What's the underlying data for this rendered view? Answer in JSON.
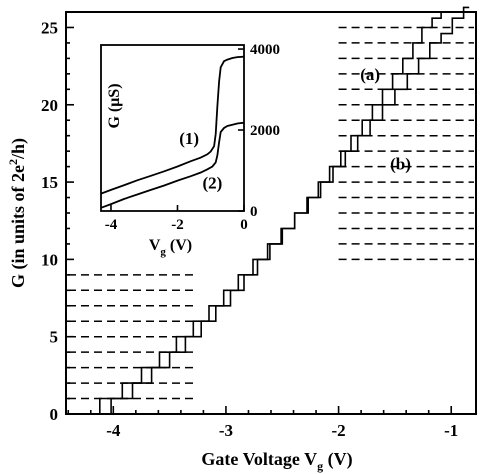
{
  "chart_data": [
    {
      "type": "line",
      "title": "",
      "xlabel": "Gate Voltage V",
      "xlabel_sub": "g",
      "xlabel_unit": "(V)",
      "ylabel": "G (in units of 2e",
      "ylabel_sup": "2",
      "ylabel_tail": "/h)",
      "xlim": [
        -4.42,
        -0.78
      ],
      "ylim": [
        0,
        26
      ],
      "x_ticks": [
        -4,
        -3,
        -2,
        -1
      ],
      "x_tick_labels": [
        "-4",
        "-3",
        "-2",
        "-1"
      ],
      "y_ticks": [
        0,
        5,
        10,
        15,
        20,
        25
      ],
      "y_tick_labels": [
        "0",
        "5",
        "10",
        "15",
        "20",
        "25"
      ],
      "dashed_levels_left": [
        1,
        2,
        3,
        4,
        5,
        6,
        7,
        8,
        9
      ],
      "dashed_levels_right": [
        10,
        11,
        12,
        13,
        14,
        15,
        16,
        17,
        18,
        19,
        20,
        21,
        22,
        23,
        24,
        25
      ],
      "series": [
        {
          "name": "(a)",
          "label_at": {
            "x": -1.72,
            "y": 21.6
          },
          "x": [
            -4.08,
            -4.02,
            -3.83,
            -3.66,
            -3.5,
            -3.36,
            -3.22,
            -3.09,
            -2.96,
            -2.84,
            -2.72,
            -2.61,
            -2.5,
            -2.39,
            -2.28,
            -2.18,
            -2.08,
            -1.98,
            -1.89,
            -1.79,
            -1.7,
            -1.61,
            -1.52,
            -1.43,
            -1.34,
            -1.26,
            -1.17,
            -1.09,
            -1.03
          ],
          "y": [
            0,
            1,
            2,
            3,
            4,
            5,
            6,
            7,
            8,
            9,
            10,
            11,
            12,
            13,
            14,
            15,
            16,
            17,
            18,
            19,
            20,
            21,
            22,
            23,
            24,
            25,
            25.6,
            26,
            26
          ]
        },
        {
          "name": "(b)",
          "label_at": {
            "x": -1.45,
            "y": 15.8
          },
          "x": [
            -4.18,
            -4.12,
            -3.92,
            -3.75,
            -3.59,
            -3.44,
            -3.29,
            -3.15,
            -3.02,
            -2.89,
            -2.76,
            -2.63,
            -2.51,
            -2.39,
            -2.27,
            -2.16,
            -2.05,
            -1.94,
            -1.83,
            -1.72,
            -1.61,
            -1.5,
            -1.39,
            -1.29,
            -1.19,
            -1.09,
            -0.99,
            -0.89,
            -0.84
          ],
          "y": [
            0,
            1,
            2,
            3,
            4,
            5,
            6,
            7,
            8,
            9,
            10,
            11,
            12,
            13,
            14,
            15,
            16,
            17,
            18,
            19,
            20,
            21,
            22,
            23,
            24,
            24.6,
            25.6,
            26.3,
            26.3
          ]
        }
      ]
    },
    {
      "type": "line",
      "title": "",
      "xlabel": "V",
      "xlabel_sub": "g",
      "xlabel_unit": "(V)",
      "ylabel": "G (μS)",
      "xlim": [
        -4.3,
        0
      ],
      "ylim": [
        0,
        4100
      ],
      "x_ticks": [
        -4,
        -2,
        0
      ],
      "x_tick_labels": [
        "-4",
        "-2",
        "0"
      ],
      "y_ticks": [
        0,
        2000,
        4000
      ],
      "y_tick_labels": [
        "0",
        "2000",
        "4000"
      ],
      "y_axis_side": "right",
      "series": [
        {
          "name": "(1)",
          "label_at": {
            "x": -1.65,
            "y": 1650
          },
          "x": [
            -4.3,
            -4.0,
            -3.6,
            -3.2,
            -2.8,
            -2.4,
            -2.0,
            -1.6,
            -1.3,
            -1.1,
            -1.0,
            -0.9,
            -0.85,
            -0.8,
            -0.75,
            -0.7,
            -0.6,
            -0.5,
            -0.35,
            -0.2,
            0
          ],
          "y": [
            430,
            520,
            640,
            760,
            870,
            980,
            1100,
            1230,
            1320,
            1400,
            1470,
            1600,
            1900,
            2600,
            3200,
            3550,
            3700,
            3740,
            3780,
            3800,
            3810
          ]
        },
        {
          "name": "(2)",
          "label_at": {
            "x": -0.95,
            "y": 560
          },
          "x": [
            -4.3,
            -4.0,
            -3.6,
            -3.2,
            -2.8,
            -2.4,
            -2.0,
            -1.6,
            -1.3,
            -1.1,
            -0.95,
            -0.85,
            -0.8,
            -0.75,
            -0.7,
            -0.6,
            -0.5,
            -0.35,
            -0.2,
            0
          ],
          "y": [
            80,
            170,
            300,
            410,
            520,
            630,
            750,
            860,
            950,
            1030,
            1100,
            1200,
            1380,
            1700,
            1950,
            2050,
            2100,
            2130,
            2160,
            2180
          ]
        }
      ]
    }
  ]
}
